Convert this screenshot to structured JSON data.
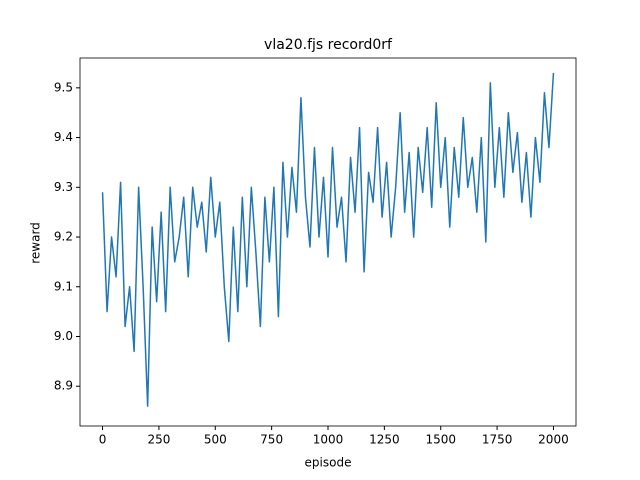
{
  "chart_data": {
    "type": "line",
    "title": "vla20.fjs record0rf",
    "x_label": "episode",
    "y_label": "reward",
    "x": [
      0,
      20,
      40,
      60,
      80,
      100,
      120,
      140,
      160,
      180,
      200,
      220,
      240,
      260,
      280,
      300,
      320,
      340,
      360,
      380,
      400,
      420,
      440,
      460,
      480,
      500,
      520,
      540,
      560,
      580,
      600,
      620,
      640,
      660,
      680,
      700,
      720,
      740,
      760,
      780,
      800,
      820,
      840,
      860,
      880,
      900,
      920,
      940,
      960,
      980,
      1000,
      1020,
      1040,
      1060,
      1080,
      1100,
      1120,
      1140,
      1160,
      1180,
      1200,
      1220,
      1240,
      1260,
      1280,
      1300,
      1320,
      1340,
      1360,
      1380,
      1400,
      1420,
      1440,
      1460,
      1480,
      1500,
      1520,
      1540,
      1560,
      1580,
      1600,
      1620,
      1640,
      1660,
      1680,
      1700,
      1720,
      1740,
      1760,
      1780,
      1800,
      1820,
      1840,
      1860,
      1880,
      1900,
      1920,
      1940,
      1960,
      1980,
      2000
    ],
    "values": [
      9.29,
      9.05,
      9.2,
      9.12,
      9.31,
      9.02,
      9.1,
      8.97,
      9.3,
      9.1,
      8.86,
      9.22,
      9.07,
      9.25,
      9.05,
      9.3,
      9.15,
      9.2,
      9.28,
      9.12,
      9.3,
      9.22,
      9.27,
      9.17,
      9.32,
      9.2,
      9.27,
      9.1,
      8.99,
      9.22,
      9.05,
      9.28,
      9.1,
      9.3,
      9.17,
      9.02,
      9.28,
      9.15,
      9.3,
      9.04,
      9.35,
      9.2,
      9.34,
      9.25,
      9.48,
      9.28,
      9.18,
      9.38,
      9.2,
      9.32,
      9.16,
      9.38,
      9.22,
      9.28,
      9.15,
      9.36,
      9.25,
      9.42,
      9.13,
      9.33,
      9.27,
      9.42,
      9.24,
      9.35,
      9.2,
      9.3,
      9.45,
      9.25,
      9.37,
      9.2,
      9.38,
      9.29,
      9.42,
      9.26,
      9.47,
      9.3,
      9.4,
      9.22,
      9.38,
      9.28,
      9.44,
      9.3,
      9.36,
      9.25,
      9.4,
      9.19,
      9.51,
      9.3,
      9.42,
      9.28,
      9.45,
      9.33,
      9.41,
      9.27,
      9.37,
      9.24,
      9.4,
      9.31,
      9.49,
      9.38,
      9.53
    ],
    "color": "#1f77b4",
    "xlim": [
      -100,
      2100
    ],
    "xticks": [
      0,
      250,
      500,
      750,
      1000,
      1250,
      1500,
      1750,
      2000
    ],
    "ylim": [
      8.82,
      9.56
    ],
    "yticks": [
      8.9,
      {
        "value": 9,
        "label": "9.0"
      },
      9.1,
      9.2,
      9.3,
      9.4,
      9.5
    ]
  }
}
